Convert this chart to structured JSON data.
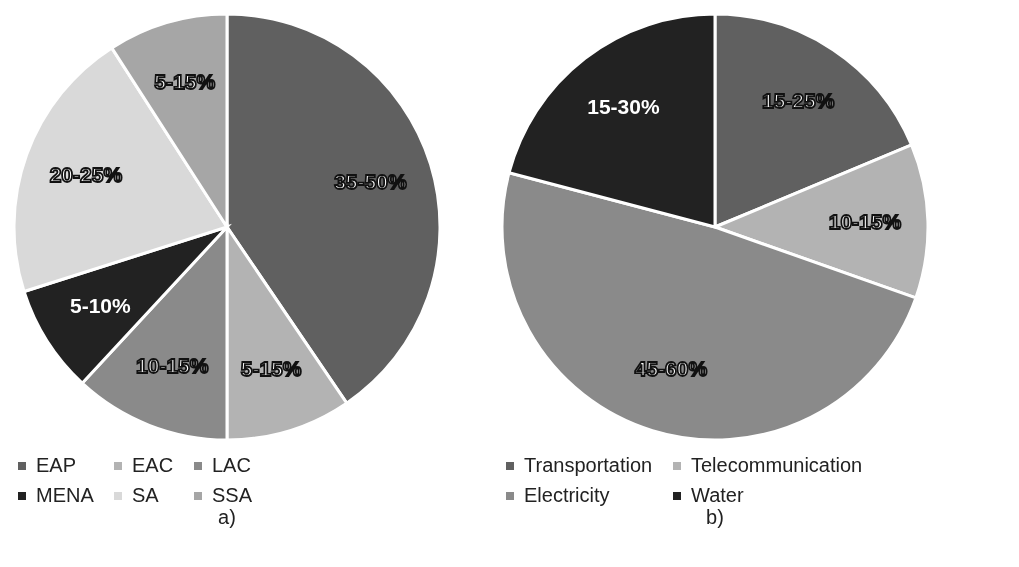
{
  "chart_data": [
    {
      "type": "pie",
      "categories": [
        "EAP",
        "EAC",
        "LAC",
        "MENA",
        "SA",
        "SSA"
      ],
      "values": [
        40.5,
        9.5,
        11.9,
        8.2,
        20.8,
        9.1
      ],
      "colors": [
        "#606060",
        "#b3b3b3",
        "#8a8a8a",
        "#222222",
        "#d9d9d9",
        "#a6a6a6"
      ],
      "legend": "bottom",
      "annotations": [
        {
          "text": "35-50%",
          "x": "EAP"
        },
        {
          "text": "5-15%",
          "x": "EAC"
        },
        {
          "text": "10-15%",
          "x": "LAC"
        },
        {
          "text": "5-10%",
          "x": "MENA"
        },
        {
          "text": "20-25%",
          "x": "SA"
        },
        {
          "text": "5-15%",
          "x": "SSA"
        },
        "a)"
      ]
    },
    {
      "type": "pie",
      "categories": [
        "Transportation",
        "Telecommunication",
        "Electricity",
        "Water"
      ],
      "values": [
        18.7,
        11.7,
        48.7,
        20.9
      ],
      "colors": [
        "#606060",
        "#b3b3b3",
        "#8a8a8a",
        "#222222"
      ],
      "legend": "bottom",
      "annotations": [
        {
          "text": "15-25%",
          "x": "Transportation"
        },
        {
          "text": "10-15%",
          "x": "Telecommunication"
        },
        {
          "text": "45-60%",
          "x": "Electricity"
        },
        {
          "text": "15-30%",
          "x": "Water"
        },
        "b)"
      ]
    }
  ]
}
